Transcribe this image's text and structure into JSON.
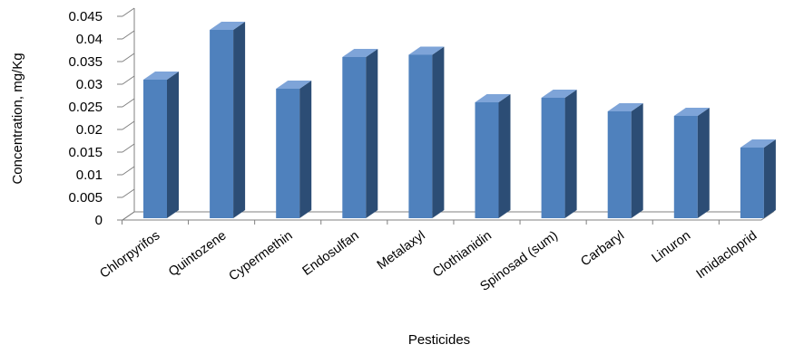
{
  "chart_data": {
    "type": "bar",
    "title": "",
    "xlabel": "Pesticides",
    "ylabel": "Concentration, mg/Kg",
    "categories": [
      "Chlorpyrifos",
      "Quintozene",
      "Cypermethin",
      "Endosulfan",
      "Metalaxyl",
      "Clothianidin",
      "Spinosad (sum)",
      "Carbaryl",
      "Linuron",
      "Imidacloprid"
    ],
    "values": [
      0.031,
      0.042,
      0.029,
      0.036,
      0.0365,
      0.026,
      0.027,
      0.024,
      0.023,
      0.016
    ],
    "ylim": [
      0,
      0.045
    ],
    "yticks": [
      "0",
      "0.005",
      "0.01",
      "0.015",
      "0.02",
      "0.025",
      "0.03",
      "0.035",
      "0.04",
      "0.045"
    ],
    "grid": false,
    "legend": "none",
    "style": "3d-column",
    "colors": {
      "front": "#4f81bd",
      "side": "#2c4d75",
      "top": "#7ea4d8",
      "axis": "#808080"
    }
  }
}
